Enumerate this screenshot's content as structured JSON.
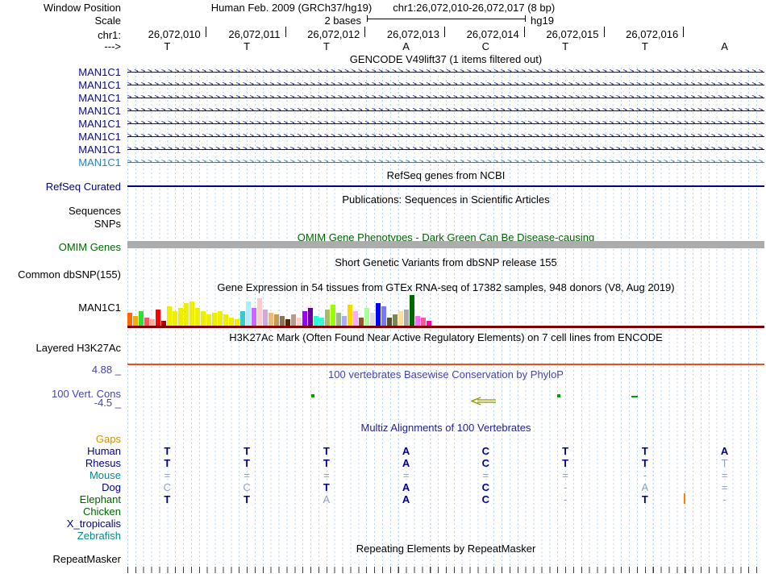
{
  "header": {
    "assembly_title": "Human Feb. 2009 (GRCh37/hg19)",
    "position_title": "chr1:26,072,010-26,072,017 (8 bp)",
    "window_position_label": "Window Position",
    "scale_label": "Scale",
    "scale_value": "2 bases",
    "scale_genome": "hg19",
    "chrom_label": "chr1:",
    "strand_label": "--->",
    "coordinates": [
      "26,072,010",
      "26,072,011",
      "26,072,012",
      "26,072,013",
      "26,072,014",
      "26,072,015",
      "26,072,016"
    ],
    "bases": [
      "T",
      "T",
      "T",
      "A",
      "C",
      "T",
      "T",
      "A"
    ]
  },
  "colors": {
    "guideline": "#9CC5E8",
    "refseq_blue": "#00008B",
    "omim_green": "#006400",
    "omim_bar": "#ACACAC",
    "gtex_baseline": "#7D0000",
    "h3k27ac_line": "#E1501E",
    "phylop_blue": "#4343AC",
    "multiz_blue": "#22228B",
    "conservation_mark": "#00A000",
    "gap_arrow": "#909000",
    "insert_marker": "#FF8000"
  },
  "tracks": {
    "gencode": {
      "title": "GENCODE V49lift37 (1 items filtered out)",
      "arrow_pattern": ">>>>>>>>>>>>>>>>>>>>>>>>>>>>>>>>>>>>>>>>>>>>>>>>>>>>>>>>>>>>>>>>>>>>>>>>>>>>>>>>>>>>>>>>>>>>>>>>>>>>>>>>>>>>>>>>>>>>",
      "genes": [
        {
          "label": "MAN1C1",
          "color": "#0C0C8C"
        },
        {
          "label": "MAN1C1",
          "color": "#0C0C8C"
        },
        {
          "label": "MAN1C1",
          "color": "#0C0C8C"
        },
        {
          "label": "MAN1C1",
          "color": "#0C0C8C"
        },
        {
          "label": "MAN1C1",
          "color": "#0C0C8C"
        },
        {
          "label": "MAN1C1",
          "color": "#0C0C8C"
        },
        {
          "label": "MAN1C1",
          "color": "#0C0C8C"
        },
        {
          "label": "MAN1C1",
          "color": "#2980B9"
        }
      ]
    },
    "refseq": {
      "title": "RefSeq genes from NCBI",
      "label": "RefSeq Curated"
    },
    "publications": {
      "title": "Publications: Sequences in Scientific Articles",
      "sequences_label": "Sequences",
      "snps_label": "SNPs"
    },
    "omim": {
      "title": "OMIM Gene Phenotypes - Dark Green Can Be Disease-causing",
      "label": "OMIM Genes"
    },
    "dbsnp": {
      "title": "Short Genetic Variants from dbSNP release 155",
      "label": "Common dbSNP(155)"
    },
    "gtex": {
      "title": "Gene Expression in 54 tissues from GTEx RNA-seq of 17382 samples, 948 donors (V8, Aug 2019)",
      "label": "MAN1C1"
    },
    "h3k27ac": {
      "title": "H3K27Ac Mark (Often Found Near Active Regulatory Elements) on 7 cell lines from ENCODE",
      "label": "Layered H3K27Ac"
    },
    "conservation": {
      "title": "100 vertebrates Basewise Conservation by PhyloP",
      "label": "100 Vert. Cons",
      "max_label": "4.88 _",
      "min_label": "-4.5 _"
    },
    "multiz": {
      "title": "Multiz Alignments of 100 Vertebrates",
      "species": [
        {
          "name": "Gaps",
          "color": "#D99000",
          "cells": [
            "",
            "",
            "",
            "",
            "",
            "",
            "",
            ""
          ],
          "muted": [
            0,
            0,
            0,
            0,
            0,
            0,
            0,
            0
          ]
        },
        {
          "name": "Human",
          "color": "#00008B",
          "cells": [
            "T",
            "T",
            "T",
            "A",
            "C",
            "T",
            "T",
            "A"
          ],
          "muted": [
            0,
            0,
            0,
            0,
            0,
            0,
            0,
            0
          ]
        },
        {
          "name": "Rhesus",
          "color": "#00008B",
          "cells": [
            "T",
            "T",
            "T",
            "A",
            "C",
            "T",
            "T",
            "T"
          ],
          "muted": [
            0,
            0,
            0,
            0,
            0,
            0,
            0,
            1
          ]
        },
        {
          "name": "Mouse",
          "color": "#008B8B",
          "cells": [
            "=",
            "=",
            "=",
            "=",
            "=",
            "=",
            "-",
            "="
          ],
          "muted": [
            1,
            1,
            1,
            1,
            1,
            1,
            1,
            1
          ]
        },
        {
          "name": "Dog",
          "color": "#00008B",
          "cells": [
            "C",
            "C",
            "T",
            "A",
            "C",
            "-",
            "A",
            "="
          ],
          "muted": [
            1,
            1,
            0,
            0,
            0,
            1,
            1,
            1
          ]
        },
        {
          "name": "Elephant",
          "color": "#006400",
          "cells": [
            "T",
            "T",
            "A",
            "A",
            "C",
            "-",
            "T",
            "-"
          ],
          "muted": [
            0,
            0,
            1,
            0,
            0,
            1,
            0,
            1
          ]
        },
        {
          "name": "Chicken",
          "color": "#006400",
          "cells": [
            "",
            "",
            "",
            "",
            "",
            "",
            "",
            ""
          ],
          "muted": [
            0,
            0,
            0,
            0,
            0,
            0,
            0,
            0
          ]
        },
        {
          "name": "X_tropicalis",
          "color": "#00008B",
          "cells": [
            "",
            "",
            "",
            "",
            "",
            "",
            "",
            ""
          ],
          "muted": [
            0,
            0,
            0,
            0,
            0,
            0,
            0,
            0
          ]
        },
        {
          "name": "Zebrafish",
          "color": "#008B8B",
          "cells": [
            "",
            "",
            "",
            "",
            "",
            "",
            "",
            ""
          ],
          "muted": [
            0,
            0,
            0,
            0,
            0,
            0,
            0,
            0
          ]
        }
      ]
    },
    "repeatmasker": {
      "title": "Repeating Elements by RepeatMasker",
      "label": "RepeatMasker"
    }
  },
  "chart_data": {
    "type": "bar",
    "title": "Gene Expression in 54 tissues from GTEx RNA-seq of 17382 samples, 948 donors (V8, Aug 2019)",
    "gene": "MAN1C1",
    "values": [
      16,
      12,
      18,
      10,
      8,
      20,
      6,
      24,
      18,
      22,
      28,
      30,
      22,
      18,
      14,
      16,
      18,
      14,
      10,
      8,
      18,
      30,
      22,
      34,
      20,
      16,
      14,
      12,
      8,
      14,
      10,
      18,
      22,
      12,
      10,
      20,
      26,
      16,
      12,
      26,
      18,
      10,
      22,
      16,
      28,
      24,
      10,
      14,
      18,
      20,
      38,
      12,
      10,
      6
    ],
    "colors": [
      "#FF6600",
      "#FFAA00",
      "#33DD33",
      "#FF5555",
      "#FFAA99",
      "#FF0000",
      "#AA0000",
      "#EEEE00",
      "#EEEE00",
      "#EEEE00",
      "#EEEE00",
      "#EEEE00",
      "#EEEE00",
      "#EEEE00",
      "#EEEE00",
      "#EEEE00",
      "#EEEE00",
      "#EEEE00",
      "#EEEE00",
      "#EEEE00",
      "#33CCCC",
      "#AAEEFF",
      "#CC66FF",
      "#FFCCCC",
      "#CCAADD",
      "#EEBB77",
      "#CC9955",
      "#8B7355",
      "#552200",
      "#BB9988",
      "#FFCCCC",
      "#9900FF",
      "#660099",
      "#22FFDD",
      "#33FFCC",
      "#AABB66",
      "#99FF00",
      "#99BB88",
      "#AAAAFF",
      "#FFD700",
      "#FFAAFF",
      "#995522",
      "#AAFF99",
      "#DDDDDD",
      "#0000FF",
      "#7777FF",
      "#555522",
      "#778855",
      "#FFDD99",
      "#AAAAAA",
      "#006600",
      "#FF66FF",
      "#FF5599",
      "#FF00BB"
    ]
  }
}
